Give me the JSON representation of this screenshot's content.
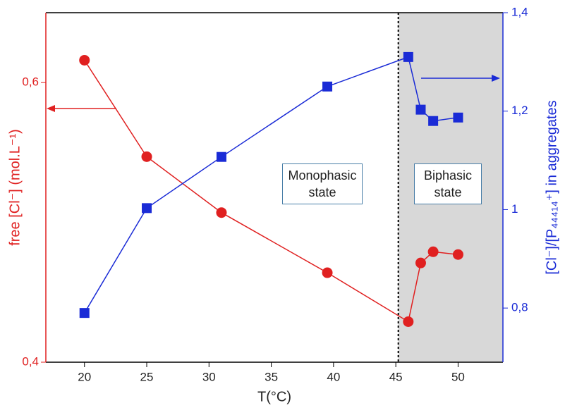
{
  "chart_data": {
    "type": "line",
    "x_label": "T(°C)",
    "y_label": "free [Cl⁻] (mol.L⁻¹)",
    "y2_label": "[Cl⁻]/[P₄₄₄₁₄⁺] in aggregates",
    "xlim": [
      16.9,
      53.6
    ],
    "xticks": [
      20,
      25,
      30,
      35,
      40,
      45,
      50
    ],
    "ylim": [
      0.4,
      0.65
    ],
    "yticks": [
      {
        "value": 0.4,
        "label": "0,4"
      },
      {
        "value": 0.6,
        "label": "0,6"
      }
    ],
    "y2lim": [
      0.69,
      1.4
    ],
    "y2ticks": [
      {
        "value": 0.8,
        "label": "0,8"
      },
      1,
      {
        "value": 1.2,
        "label": "1,2"
      },
      {
        "value": 1.4,
        "label": "1,4"
      }
    ],
    "phase_boundary": 45.2,
    "annotations": [
      "Monophasic state",
      "Biphasic state"
    ],
    "series": [
      {
        "name": "free [Cl⁻]",
        "color": "#e02020",
        "marker": "circle",
        "x": [
          20,
          25,
          31,
          39.5,
          46,
          47,
          48,
          50
        ],
        "values": [
          0.616,
          0.547,
          0.507,
          0.464,
          0.429,
          0.471,
          0.479,
          0.477
        ]
      },
      {
        "name": "[Cl⁻]/[P₄₄₄₁₄⁺]",
        "color": "#1a2bd6",
        "marker": "square",
        "axis": "y2",
        "x": [
          20,
          25,
          31,
          39.5,
          46,
          47,
          48,
          50
        ],
        "values": [
          0.79,
          1.003,
          1.107,
          1.25,
          1.31,
          1.203,
          1.18,
          1.187
        ]
      }
    ]
  }
}
